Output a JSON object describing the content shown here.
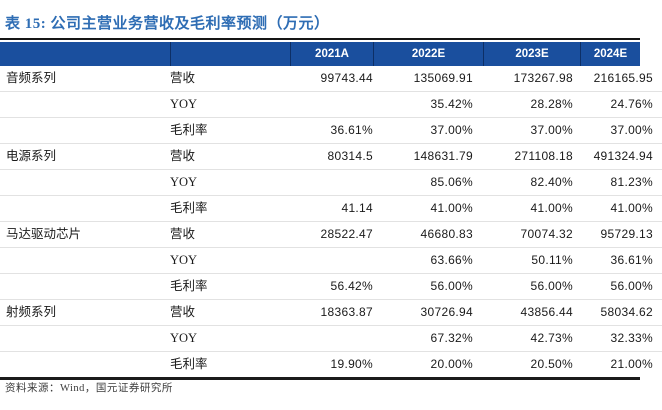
{
  "title": "表 15: 公司主营业务营收及毛利率预测（万元）",
  "table": {
    "year_headers": [
      "2021A",
      "2022E",
      "2023E",
      "2024E"
    ],
    "groups": [
      {
        "name": "音频系列",
        "rows": [
          {
            "metric": "营收",
            "values": [
              "99743.44",
              "135069.91",
              "173267.98",
              "216165.95"
            ]
          },
          {
            "metric": "YOY",
            "values": [
              "",
              "35.42%",
              "28.28%",
              "24.76%"
            ]
          },
          {
            "metric": "毛利率",
            "values": [
              "36.61%",
              "37.00%",
              "37.00%",
              "37.00%"
            ]
          }
        ]
      },
      {
        "name": "电源系列",
        "rows": [
          {
            "metric": "营收",
            "values": [
              "80314.5",
              "148631.79",
              "271108.18",
              "491324.94"
            ]
          },
          {
            "metric": "YOY",
            "values": [
              "",
              "85.06%",
              "82.40%",
              "81.23%"
            ]
          },
          {
            "metric": "毛利率",
            "values": [
              "41.14",
              "41.00%",
              "41.00%",
              "41.00%"
            ]
          }
        ]
      },
      {
        "name": "马达驱动芯片",
        "rows": [
          {
            "metric": "营收",
            "values": [
              "28522.47",
              "46680.83",
              "70074.32",
              "95729.13"
            ]
          },
          {
            "metric": "YOY",
            "values": [
              "",
              "63.66%",
              "50.11%",
              "36.61%"
            ]
          },
          {
            "metric": "毛利率",
            "values": [
              "56.42%",
              "56.00%",
              "56.00%",
              "56.00%"
            ]
          }
        ]
      },
      {
        "name": "射频系列",
        "rows": [
          {
            "metric": "营收",
            "values": [
              "18363.87",
              "30726.94",
              "43856.44",
              "58034.62"
            ]
          },
          {
            "metric": "YOY",
            "values": [
              "",
              "67.32%",
              "42.73%",
              "32.33%"
            ]
          },
          {
            "metric": "毛利率",
            "values": [
              "19.90%",
              "20.00%",
              "20.50%",
              "21.00%"
            ]
          }
        ]
      }
    ]
  },
  "footer": {
    "source": "资料来源：Wind，国元证券研究所"
  },
  "colors": {
    "header_bg": "#1A4F9E",
    "header_separator": "#0d2f66",
    "title_text": "#2E6DB4",
    "rule": "#151515",
    "row_line": "#e2e2e2",
    "body_text": "#1a1a1a",
    "footer_text": "#3d3d3d"
  }
}
